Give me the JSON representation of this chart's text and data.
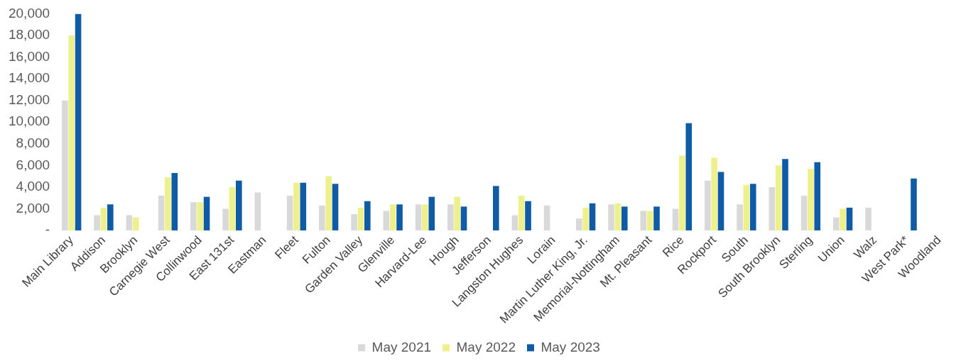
{
  "chart_data": {
    "type": "bar",
    "categories": [
      "Main Library",
      "Addison",
      "Brooklyn",
      "Carnegie West",
      "Collinwood",
      "East 131st",
      "Eastman",
      "Fleet",
      "Fulton",
      "Garden Valley",
      "Glenville",
      "Harvard-Lee",
      "Hough",
      "Jefferson",
      "Langston Hughes",
      "Lorain",
      "Martin Luther King, Jr.",
      "Memorial-Nottingham",
      "Mt. Pleasant",
      "Rice",
      "Rockport",
      "South",
      "South Brooklyn",
      "Sterling",
      "Union",
      "Walz",
      "West Park*",
      "Woodland"
    ],
    "series": [
      {
        "name": "May 2021",
        "color": "#d9d9d9",
        "values": [
          12000,
          1400,
          1400,
          3200,
          2600,
          2000,
          3500,
          3200,
          2300,
          1500,
          1800,
          2400,
          2400,
          null,
          1400,
          2300,
          1100,
          2400,
          1800,
          2000,
          4600,
          2400,
          4000,
          3200,
          1200,
          2100,
          null,
          null
        ]
      },
      {
        "name": "May 2022",
        "color": "#eef08c",
        "values": [
          18000,
          2100,
          1200,
          4900,
          2600,
          4000,
          null,
          4400,
          5000,
          2100,
          2400,
          2400,
          3100,
          null,
          3200,
          null,
          2100,
          2500,
          1800,
          6900,
          6700,
          4200,
          6000,
          5700,
          2000,
          null,
          null,
          null
        ]
      },
      {
        "name": "May 2023",
        "color": "#0f5ba6",
        "values": [
          20000,
          2400,
          null,
          5300,
          3100,
          4600,
          null,
          4400,
          4300,
          2700,
          2400,
          3100,
          2200,
          4100,
          2700,
          null,
          2500,
          2200,
          2200,
          9900,
          5400,
          4300,
          6600,
          6300,
          2100,
          null,
          4800,
          null
        ]
      }
    ],
    "ylim": [
      0,
      20000
    ],
    "yticks": [
      {
        "value": 0,
        "label": "-"
      },
      {
        "value": 2000,
        "label": "2,000"
      },
      {
        "value": 4000,
        "label": "4,000"
      },
      {
        "value": 6000,
        "label": "6,000"
      },
      {
        "value": 8000,
        "label": "8,000"
      },
      {
        "value": 10000,
        "label": "10,000"
      },
      {
        "value": 12000,
        "label": "12,000"
      },
      {
        "value": 14000,
        "label": "14,000"
      },
      {
        "value": 16000,
        "label": "16,000"
      },
      {
        "value": 18000,
        "label": "18,000"
      },
      {
        "value": 20000,
        "label": "20,000"
      }
    ],
    "legend": "bottom"
  }
}
